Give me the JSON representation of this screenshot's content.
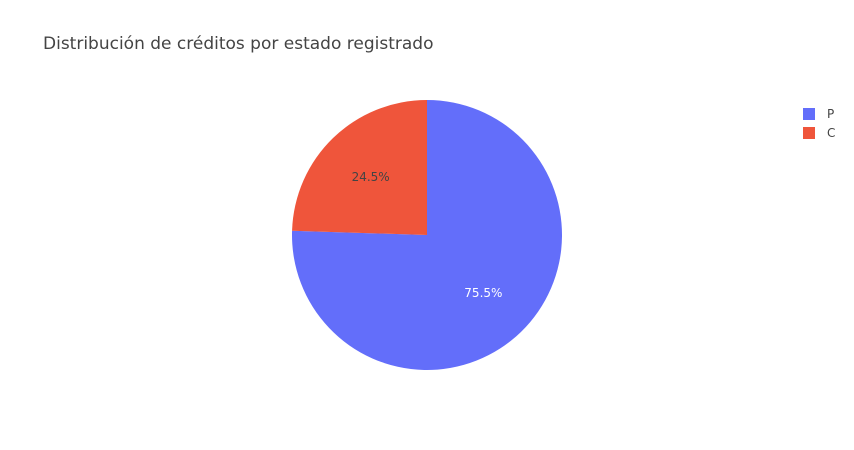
{
  "chart_data": {
    "type": "pie",
    "title": "Distribución de créditos por estado registrado",
    "slices": [
      {
        "label": "P",
        "value": 75.5,
        "text": "75.5%",
        "color": "#636efa",
        "text_color": "#ffffff"
      },
      {
        "label": "C",
        "value": 24.5,
        "text": "24.5%",
        "color": "#ef553b",
        "text_color": "#444444"
      }
    ],
    "direction": "counterclockwise",
    "legend": {
      "position": "top-right",
      "entries": [
        "P",
        "C"
      ]
    }
  }
}
